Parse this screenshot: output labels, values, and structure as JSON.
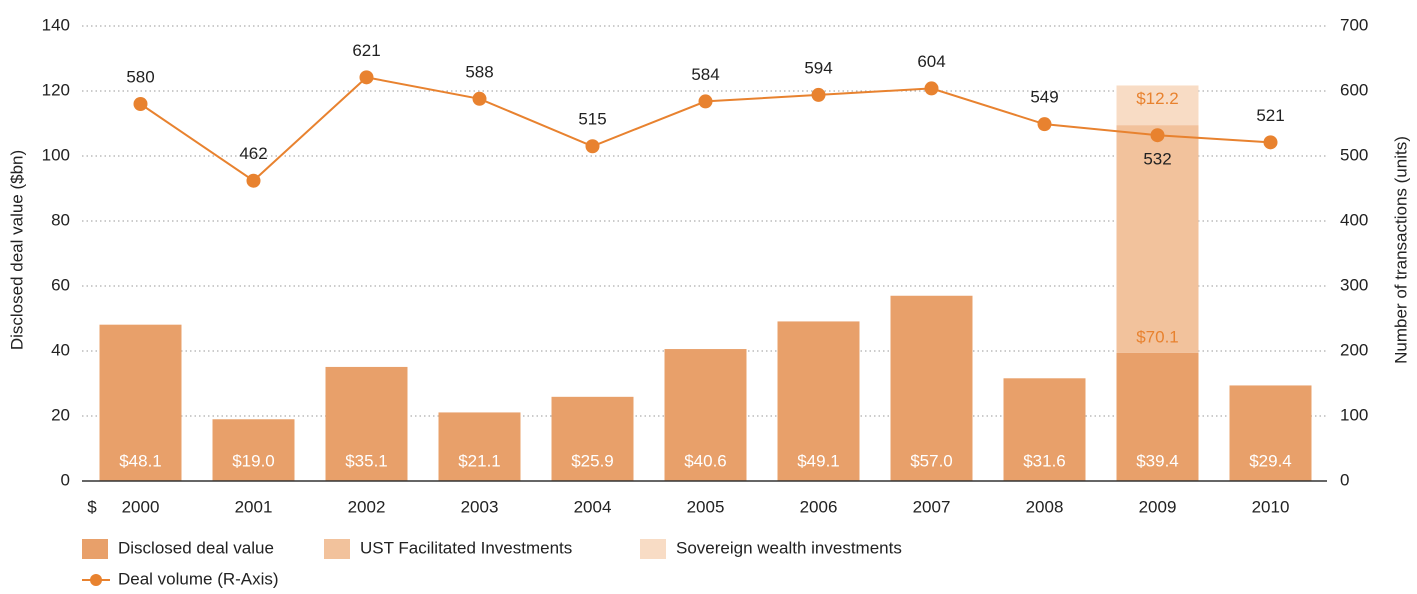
{
  "chart_data": {
    "type": "bar",
    "categories": [
      "2000",
      "2001",
      "2002",
      "2003",
      "2004",
      "2005",
      "2006",
      "2007",
      "2008",
      "2009",
      "2010"
    ],
    "currency_symbol": "$",
    "ylabel": "Disclosed deal value ($bn)",
    "y2label": "Number of transactions (units)",
    "ylim": [
      0,
      140
    ],
    "yticks": [
      0,
      20,
      40,
      60,
      80,
      100,
      120,
      140
    ],
    "y2lim": [
      0,
      700
    ],
    "y2ticks": [
      0,
      100,
      200,
      300,
      400,
      500,
      600,
      700
    ],
    "grid": true,
    "legend": "bottom",
    "series": [
      {
        "name": "Disclosed deal value",
        "color": "#e8a06a",
        "values": [
          48.1,
          19.0,
          35.1,
          21.1,
          25.9,
          40.6,
          49.1,
          57.0,
          31.6,
          39.4,
          29.4
        ],
        "value_labels": [
          "$48.1",
          "$19.0",
          "$35.1",
          "$21.1",
          "$25.9",
          "$40.6",
          "$49.1",
          "$57.0",
          "$31.6",
          "$39.4",
          "$29.4"
        ]
      },
      {
        "name": "UST Facilitated Investments",
        "color": "#f2c29c",
        "values": [
          null,
          null,
          null,
          null,
          null,
          null,
          null,
          null,
          null,
          70.1,
          null
        ],
        "value_labels": [
          null,
          null,
          null,
          null,
          null,
          null,
          null,
          null,
          null,
          "$70.1",
          null
        ]
      },
      {
        "name": "Sovereign wealth investments",
        "color": "#f8dcc5",
        "values": [
          null,
          null,
          null,
          null,
          null,
          null,
          null,
          null,
          null,
          12.2,
          null
        ],
        "value_labels": [
          null,
          null,
          null,
          null,
          null,
          null,
          null,
          null,
          null,
          "$12.2",
          null
        ]
      },
      {
        "name": "Deal volume (R-Axis)",
        "color": "#e8822f",
        "type": "line",
        "axis": "y2",
        "values": [
          580,
          462,
          621,
          588,
          515,
          584,
          594,
          604,
          549,
          532,
          521
        ]
      }
    ]
  }
}
